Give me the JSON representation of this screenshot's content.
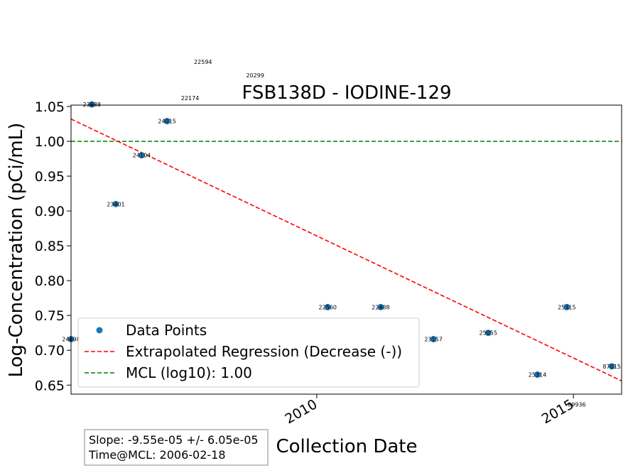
{
  "chart_data": {
    "type": "scatter",
    "title": "FSB138D - IODINE-129",
    "xlabel": "Collection Date",
    "ylabel": "Log-Concentration (pCi/mL)",
    "xlim": [
      "2005-03-20",
      "2015-12-10"
    ],
    "ylim": [
      0.637,
      1.052
    ],
    "y_ticks": [
      0.65,
      0.7,
      0.75,
      0.8,
      0.85,
      0.9,
      0.95,
      1.0,
      1.05
    ],
    "x_ticks": [
      {
        "date": "2010-01-01",
        "label": "2010"
      },
      {
        "date": "2015-01-01",
        "label": "2015"
      }
    ],
    "grid": false,
    "legend_position": "lower-left",
    "series": [
      {
        "name": "Data Points",
        "kind": "scatter",
        "color": "#1f77b4",
        "points": [
          {
            "date": "2005-03-20",
            "y": 0.716,
            "label": "24698"
          },
          {
            "date": "2005-08-15",
            "y": 1.053,
            "label": "23888"
          },
          {
            "date": "2006-02-01",
            "y": 0.91,
            "label": "23401"
          },
          {
            "date": "2006-08-05",
            "y": 0.98,
            "label": "24104"
          },
          {
            "date": "2007-02-01",
            "y": 1.029,
            "label": "24015"
          },
          {
            "date": "2010-03-20",
            "y": 0.762,
            "label": "22560"
          },
          {
            "date": "2011-04-01",
            "y": 0.762,
            "label": "22488"
          },
          {
            "date": "2012-04-10",
            "y": 0.716,
            "label": "23157"
          },
          {
            "date": "2013-05-05",
            "y": 0.725,
            "label": "25055"
          },
          {
            "date": "2014-04-20",
            "y": 0.665,
            "label": "25314"
          },
          {
            "date": "2014-11-15",
            "y": 0.762,
            "label": "25315"
          },
          {
            "date": "2015-10-01",
            "y": 0.677,
            "label": "87015"
          }
        ]
      },
      {
        "name": "Extrapolated Regression (Decrease (-))",
        "kind": "line",
        "style": "dashed",
        "color": "#ff0000",
        "points": [
          {
            "date": "2005-03-20",
            "y": 1.032
          },
          {
            "date": "2015-12-10",
            "y": 0.656
          }
        ]
      },
      {
        "name": "MCL (log10): 1.00",
        "kind": "hline",
        "style": "dashed",
        "color": "#008000",
        "y": 1.0
      }
    ],
    "outside_labels": [
      {
        "date": "2007-10-15",
        "y": 1.114,
        "label": "22594"
      },
      {
        "date": "2008-10-20",
        "y": 1.095,
        "label": "20299"
      },
      {
        "date": "2007-07-15",
        "y": 1.062,
        "label": "22174"
      },
      {
        "date": "2015-01-25",
        "y": 0.622,
        "label": "89936"
      }
    ],
    "stats_box": {
      "line1": "Slope: -9.55e-05 +/- 6.05e-05",
      "line2": "Time@MCL: 2006-02-18"
    }
  }
}
